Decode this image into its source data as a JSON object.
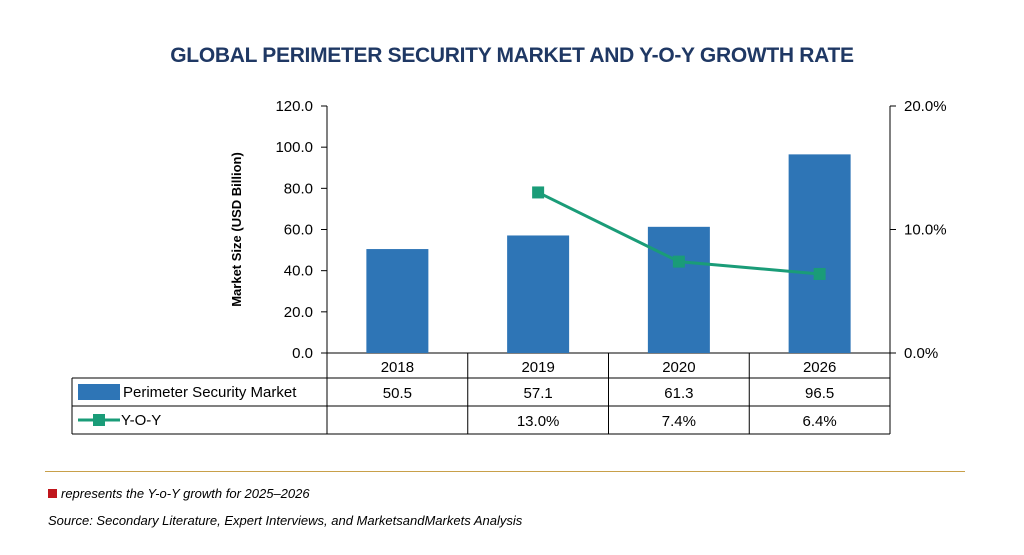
{
  "colors": {
    "bar": "#2e75b6",
    "line": "#1a9c78",
    "title": "#1f3864",
    "rule": "#c8a04a",
    "note_marker": "#c0161c"
  },
  "chart_data": {
    "type": "bar",
    "title": "GLOBAL PERIMETER SECURITY MARKET AND Y-O-Y GROWTH RATE",
    "ylabel": "Market Size (USD Billion)",
    "categories": [
      "2018",
      "2019",
      "2020",
      "2026"
    ],
    "ylim": [
      0,
      120
    ],
    "y_ticks": [
      "0.0",
      "20.0",
      "40.0",
      "60.0",
      "80.0",
      "100.0",
      "120.0"
    ],
    "y2lim": [
      0,
      20
    ],
    "y2_ticks": [
      "0.0%",
      "10.0%",
      "20.0%"
    ],
    "grid": false,
    "legend": "data table below chart",
    "series": [
      {
        "name": "Perimeter Security Market",
        "type": "bar",
        "axis": "left",
        "values": [
          50.5,
          57.1,
          61.3,
          96.5
        ],
        "labels": [
          "50.5",
          "57.1",
          "61.3",
          "96.5"
        ]
      },
      {
        "name": "Y-O-Y",
        "type": "line",
        "axis": "right",
        "values": [
          null,
          13.0,
          7.4,
          6.4
        ],
        "labels": [
          "",
          "13.0%",
          "7.4%",
          "6.4%"
        ]
      }
    ]
  },
  "footnote": "represents the Y-o-Y growth for 2025–2026",
  "source": "Source: Secondary Literature, Expert Interviews, and MarketsandMarkets Analysis"
}
